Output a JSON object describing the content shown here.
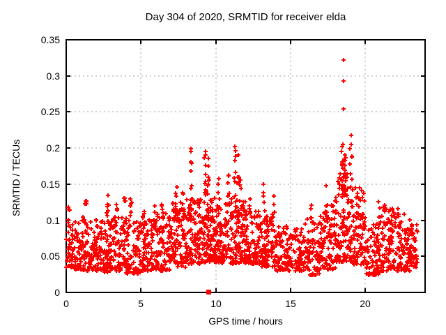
{
  "figure": {
    "background": "#ffffff",
    "text_color": "#000000"
  },
  "chart_data": {
    "type": "scatter",
    "title": "Day 304 of 2020, SRMTID for receiver elda",
    "xlabel": "GPS time / hours",
    "ylabel": "SRMTID / TECUs",
    "xlim": [
      0,
      24
    ],
    "ylim": [
      0,
      0.35
    ],
    "xticks": [
      {
        "label": "0",
        "value": 0
      },
      {
        "label": "5",
        "value": 5
      },
      {
        "label": "10",
        "value": 10
      },
      {
        "label": "15",
        "value": 15
      },
      {
        "label": "20",
        "value": 20
      }
    ],
    "yticks": [
      {
        "label": "0",
        "value": 0
      },
      {
        "label": "0.05",
        "value": 0.05
      },
      {
        "label": "0.1",
        "value": 0.1
      },
      {
        "label": "0.15",
        "value": 0.15
      },
      {
        "label": "0.2",
        "value": 0.2
      },
      {
        "label": "0.25",
        "value": 0.25
      },
      {
        "label": "0.3",
        "value": 0.3
      },
      {
        "label": "0.35",
        "value": 0.35
      }
    ],
    "grid": true,
    "grid_color": "#a0a0a0",
    "axis_color": "#000000",
    "legend_position": "none",
    "series": [
      {
        "name": "SRMTID",
        "marker": "plus",
        "color": "#ff0000",
        "x_data_start": 0.05,
        "x_data_end": 23.5,
        "band_envelope_bins": [
          [
            0,
            1,
            0.032,
            0.105,
            80
          ],
          [
            1,
            2,
            0.03,
            0.105,
            80
          ],
          [
            2,
            3,
            0.028,
            0.1,
            85
          ],
          [
            3,
            4,
            0.03,
            0.105,
            85
          ],
          [
            4,
            5,
            0.026,
            0.1,
            75
          ],
          [
            5,
            6,
            0.03,
            0.105,
            80
          ],
          [
            6,
            7,
            0.03,
            0.11,
            85
          ],
          [
            7,
            8,
            0.035,
            0.125,
            95
          ],
          [
            8,
            9,
            0.04,
            0.13,
            100
          ],
          [
            9,
            10,
            0.042,
            0.14,
            110
          ],
          [
            10,
            11,
            0.04,
            0.125,
            95
          ],
          [
            11,
            12,
            0.04,
            0.13,
            105
          ],
          [
            12,
            13,
            0.04,
            0.115,
            90
          ],
          [
            13,
            14,
            0.036,
            0.11,
            90
          ],
          [
            14,
            15,
            0.03,
            0.095,
            75
          ],
          [
            15,
            16,
            0.03,
            0.09,
            70
          ],
          [
            16,
            17,
            0.024,
            0.105,
            80
          ],
          [
            17,
            18,
            0.032,
            0.125,
            90
          ],
          [
            18,
            19,
            0.042,
            0.165,
            115
          ],
          [
            19,
            20,
            0.038,
            0.145,
            100
          ],
          [
            20,
            21,
            0.024,
            0.095,
            75
          ],
          [
            21,
            22,
            0.03,
            0.115,
            90
          ],
          [
            22,
            23,
            0.03,
            0.11,
            85
          ],
          [
            23,
            23.5,
            0.035,
            0.1,
            45
          ]
        ],
        "spike_columns": [
          [
            0.15,
            0.09,
            0.118,
            5
          ],
          [
            1.3,
            0.09,
            0.127,
            6
          ],
          [
            2.8,
            0.095,
            0.134,
            7
          ],
          [
            3.35,
            0.09,
            0.122,
            5
          ],
          [
            3.9,
            0.09,
            0.131,
            5
          ],
          [
            4.3,
            0.085,
            0.13,
            6
          ],
          [
            5.2,
            0.09,
            0.112,
            4
          ],
          [
            5.9,
            0.09,
            0.12,
            5
          ],
          [
            6.4,
            0.095,
            0.122,
            5
          ],
          [
            7.4,
            0.1,
            0.146,
            7
          ],
          [
            7.8,
            0.1,
            0.138,
            5
          ],
          [
            8.35,
            0.11,
            0.199,
            9
          ],
          [
            9.3,
            0.11,
            0.195,
            10
          ],
          [
            9.5,
            0.11,
            0.186,
            8
          ],
          [
            10.2,
            0.1,
            0.158,
            6
          ],
          [
            10.85,
            0.1,
            0.162,
            6
          ],
          [
            11.3,
            0.11,
            0.202,
            9
          ],
          [
            11.5,
            0.1,
            0.19,
            7
          ],
          [
            11.65,
            0.1,
            0.156,
            5
          ],
          [
            12.3,
            0.09,
            0.13,
            4
          ],
          [
            13.2,
            0.095,
            0.15,
            6
          ],
          [
            13.9,
            0.09,
            0.133,
            5
          ],
          [
            16.4,
            0.085,
            0.121,
            5
          ],
          [
            17.4,
            0.095,
            0.148,
            7
          ],
          [
            18.5,
            0.13,
            0.205,
            12
          ],
          [
            18.65,
            0.12,
            0.19,
            10
          ],
          [
            19.05,
            0.13,
            0.205,
            8
          ],
          [
            19.5,
            0.09,
            0.132,
            5
          ],
          [
            20.9,
            0.085,
            0.126,
            5
          ],
          [
            21.3,
            0.085,
            0.121,
            5
          ],
          [
            21.8,
            0.08,
            0.116,
            4
          ],
          [
            22.2,
            0.08,
            0.116,
            4
          ]
        ],
        "outlier_points": [
          [
            18.55,
            0.322
          ],
          [
            18.55,
            0.293
          ],
          [
            18.55,
            0.254
          ],
          [
            19.05,
            0.218
          ]
        ]
      },
      {
        "name": "gap marker",
        "marker": "filled-square",
        "color": "#ff0000",
        "points": [
          [
            9.5,
            0
          ]
        ]
      }
    ]
  }
}
